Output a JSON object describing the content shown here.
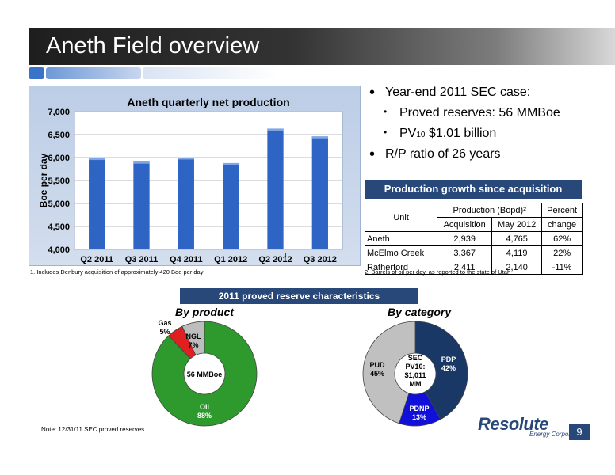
{
  "slide": {
    "title": "Aneth Field overview",
    "page_number": "9"
  },
  "chart_data": [
    {
      "type": "bar",
      "title": "Aneth quarterly net production",
      "ylabel": "Boe per day",
      "xlabel": "",
      "categories": [
        "Q2 2011",
        "Q3 2011",
        "Q4 2011",
        "Q1 2012",
        "Q2 2012",
        "Q3 2012"
      ],
      "values": [
        5990,
        5910,
        6000,
        5880,
        6630,
        6460
      ],
      "ylim": [
        4000,
        7000
      ],
      "yticks": [
        "4,000",
        "4,500",
        "5,000",
        "5,500",
        "6,000",
        "6,500",
        "7,000"
      ],
      "grid": true,
      "bar_color": "#2e64c4",
      "annotation": "1",
      "annotation_category": "Q2 2012"
    },
    {
      "type": "pie",
      "title": "By product",
      "center_label": "56 MMBoe",
      "slices": [
        {
          "label": "Oil",
          "value": 88,
          "pct_label": "88%",
          "color": "#2e9a2e"
        },
        {
          "label": "Gas",
          "value": 5,
          "pct_label": "5%",
          "color": "#e02020"
        },
        {
          "label": "NGL",
          "value": 7,
          "pct_label": "7%",
          "color": "#bdbdbd"
        }
      ]
    },
    {
      "type": "pie",
      "title": "By category",
      "center_label": [
        "SEC",
        "PV10:",
        "$1,011",
        "MM"
      ],
      "slices": [
        {
          "label": "PDP",
          "value": 42,
          "pct_label": "42%",
          "color": "#1a3866"
        },
        {
          "label": "PDNP",
          "value": 13,
          "pct_label": "13%",
          "color": "#1010d8"
        },
        {
          "label": "PUD",
          "value": 45,
          "pct_label": "45%",
          "color": "#c0c0c0"
        }
      ]
    }
  ],
  "footnotes": {
    "left": "1. Includes Denbury acquisition of approximately 420 Boe per day",
    "right": "2. Barrels of oil per day, as reported to the state of Utah"
  },
  "bullets": {
    "b1": "Year-end 2011 SEC case:",
    "s1": "Proved reserves:  56 MMBoe",
    "s2_pre": "PV",
    "s2_sub": "10",
    "s2_post": " $1.01 billion",
    "b2": "R/P ratio of 26 years"
  },
  "growth": {
    "title": "Production growth since acquisition",
    "head_unit": "Unit",
    "head_prod": "Production (Bopd)²",
    "head_pct1": "Percent",
    "head_acq": "Acquisition",
    "head_may": "May 2012",
    "head_pct2": "change",
    "rows": [
      {
        "unit": "Aneth",
        "acq": "2,939",
        "may": "4,765",
        "pct": "62%"
      },
      {
        "unit": "McElmo Creek",
        "acq": "3,367",
        "may": "4,119",
        "pct": "22%"
      },
      {
        "unit": "Ratherford",
        "acq": "2,411",
        "may": "2,140",
        "pct": "-11%"
      }
    ]
  },
  "reserves": {
    "title": "2011 proved reserve characteristics"
  },
  "note": "Note:  12/31/11 SEC proved reserves",
  "logo": {
    "name": "Resolute",
    "tagline": "Energy Corporation"
  }
}
